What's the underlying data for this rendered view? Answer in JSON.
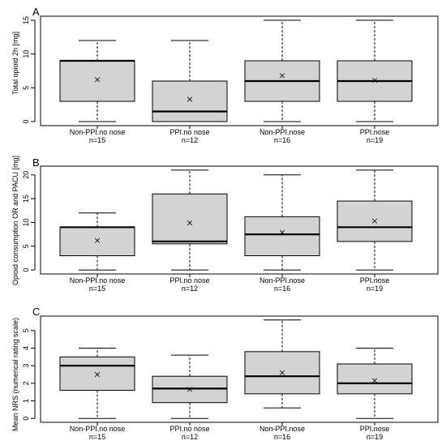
{
  "chart_data": [
    {
      "type": "box",
      "panel": "A",
      "ylabel": "Total opioid 2h [mg]",
      "ylim": [
        -0.6,
        15.6
      ],
      "yticks": [
        0,
        5,
        10,
        15
      ],
      "categories": [
        "Non-PPI.no nose",
        "PPI.no nose",
        "Non-PPI.nose",
        "PPI.nose"
      ],
      "n_labels": [
        "n=15",
        "n=12",
        "n=16",
        "n=19"
      ],
      "boxes": [
        {
          "min": 0,
          "q1": 3,
          "median": 9,
          "q3": 9,
          "max": 12,
          "mean": 6.2
        },
        {
          "min": 0,
          "q1": 0,
          "median": 1.5,
          "q3": 6,
          "max": 12,
          "mean": 3.3
        },
        {
          "min": 0,
          "q1": 3,
          "median": 6,
          "q3": 9,
          "max": 15,
          "mean": 6.8
        },
        {
          "min": 0,
          "q1": 3,
          "median": 6,
          "q3": 9,
          "max": 15,
          "mean": 6.1
        }
      ]
    },
    {
      "type": "box",
      "panel": "B",
      "ylabel": "Opioid consumption OR and PACU [mg]",
      "ylim": [
        -0.84,
        21.84
      ],
      "yticks": [
        0,
        5,
        10,
        15,
        20
      ],
      "categories": [
        "Non-PPI.no nose",
        "PPI.no nose",
        "Non-PPI.nose",
        "PPI.nose"
      ],
      "n_labels": [
        "n=15",
        "n=12",
        "n=16",
        "n=19"
      ],
      "boxes": [
        {
          "min": 0,
          "q1": 3,
          "median": 9,
          "q3": 9,
          "max": 12,
          "mean": 6.2
        },
        {
          "min": 0,
          "q1": 5.5,
          "median": 6,
          "q3": 16,
          "max": 21,
          "mean": 9.9
        },
        {
          "min": 0,
          "q1": 3,
          "median": 7.5,
          "q3": 11.2,
          "max": 20,
          "mean": 7.9
        },
        {
          "min": 0,
          "q1": 6,
          "median": 9,
          "q3": 14.5,
          "max": 21,
          "mean": 10.3
        }
      ]
    },
    {
      "type": "box",
      "panel": "C",
      "ylabel": "Mean NRS (numerical rating scale)",
      "ylim": [
        -0.22,
        5.82
      ],
      "yticks": [
        0,
        1,
        2,
        3,
        4,
        5
      ],
      "categories": [
        "Non-PPI.no nose",
        "PPI.no nose",
        "Non-PPI.nose",
        "PPI.nose"
      ],
      "n_labels": [
        "n=15",
        "n=12",
        "n=16",
        "n=19"
      ],
      "boxes": [
        {
          "min": 0,
          "q1": 1.6,
          "median": 3,
          "q3": 3.5,
          "max": 4,
          "mean": 2.5
        },
        {
          "min": 0,
          "q1": 0.9,
          "median": 1.7,
          "q3": 2.4,
          "max": 3.6,
          "mean": 1.65
        },
        {
          "min": 0.6,
          "q1": 1.4,
          "median": 2.4,
          "q3": 3.8,
          "max": 5.6,
          "mean": 2.6
        },
        {
          "min": 0,
          "q1": 1.4,
          "median": 2,
          "q3": 3.1,
          "max": 4,
          "mean": 2.15
        }
      ]
    }
  ]
}
